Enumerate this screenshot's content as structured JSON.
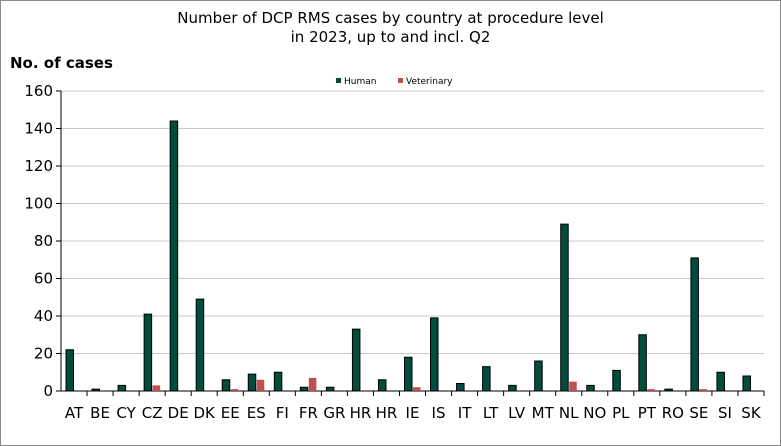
{
  "chart_data": {
    "type": "bar",
    "title_line1": "Number of DCP RMS cases by country at procedure level",
    "title_line2": "in 2023, up to and incl. Q2",
    "ylabel": "No. of cases",
    "xlabel": "",
    "ylim": [
      0,
      160
    ],
    "yticks": [
      0,
      20,
      40,
      60,
      80,
      100,
      120,
      140,
      160
    ],
    "grid": true,
    "legend_placement": "top-center",
    "categories": [
      "AT",
      "BE",
      "CY",
      "CZ",
      "DE",
      "DK",
      "EE",
      "ES",
      "FI",
      "FR",
      "GR",
      "HR",
      "HR",
      "IE",
      "IS",
      "IT",
      "LT",
      "LV",
      "MT",
      "NL",
      "NO",
      "PL",
      "PT",
      "RO",
      "SE",
      "SI",
      "SK"
    ],
    "series": [
      {
        "name": "Human",
        "color": "#004d3c",
        "values": [
          22,
          1,
          3,
          41,
          144,
          49,
          6,
          9,
          10,
          2,
          2,
          33,
          6,
          18,
          39,
          4,
          13,
          3,
          16,
          89,
          3,
          11,
          30,
          1,
          71,
          10,
          8
        ]
      },
      {
        "name": "Veterinary",
        "color": "#c0504d",
        "values": [
          0,
          0,
          0,
          3,
          0,
          0,
          1,
          6,
          0,
          7,
          0,
          0,
          0,
          2,
          0,
          0,
          0,
          0,
          0,
          5,
          0,
          0,
          1,
          0,
          1,
          0,
          0
        ]
      }
    ]
  }
}
